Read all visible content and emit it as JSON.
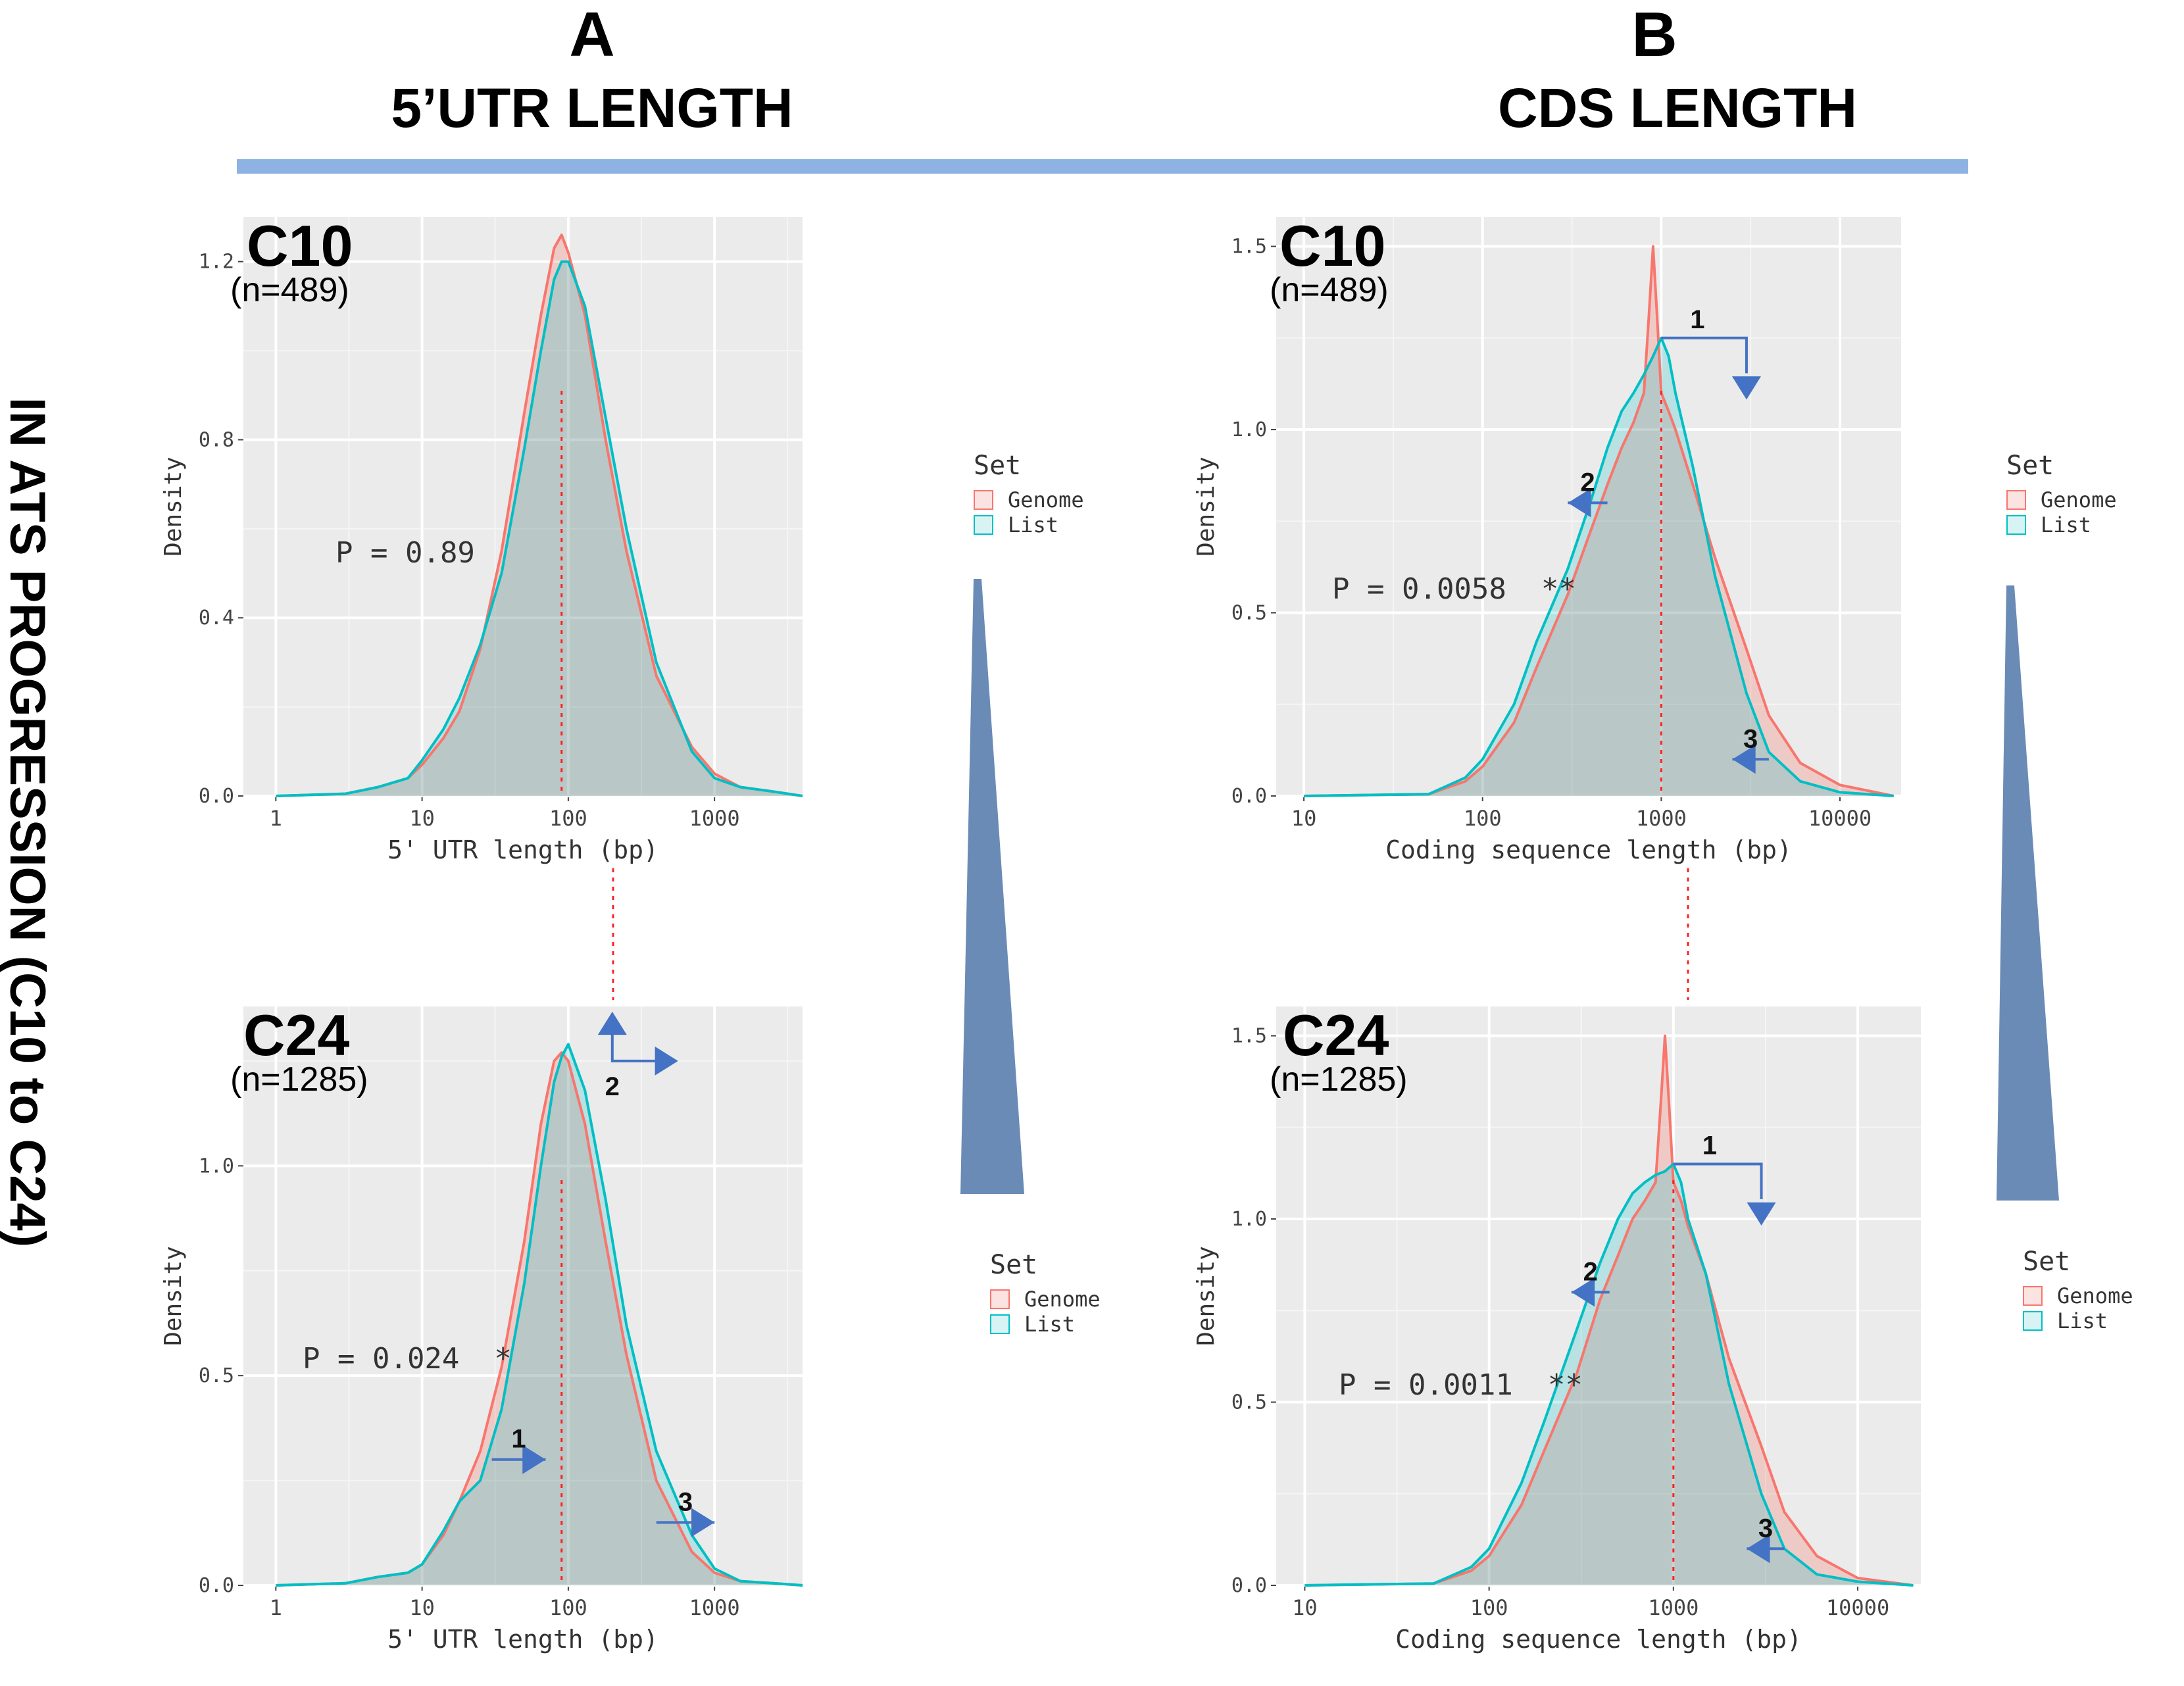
{
  "headers": {
    "left_letter": "A",
    "left_title": "5’UTR LENGTH",
    "right_letter": "B",
    "right_title": "CDS LENGTH",
    "vertical_label": "IN ATS PROGRESSION (C10 to C24)"
  },
  "colors": {
    "genome": "#f8766d",
    "list": "#00bfc4",
    "arrow": "#4472c4",
    "accent_rule": "#8db3e2",
    "wedge": "#6a8bb5",
    "plot_bg": "#ebebeb",
    "overlap": "#cbd4d4"
  },
  "chart_data": [
    {
      "id": "utr_c10",
      "type": "area",
      "title": "C10",
      "subtitle": "(n=489)",
      "xlabel": "5' UTR length (bp)",
      "ylabel": "Density",
      "xscale": "log10",
      "xlim": [
        0.6,
        4000
      ],
      "ylim": [
        0,
        1.3
      ],
      "xticks": [
        1,
        10,
        100,
        1000
      ],
      "xticklabels": [
        "1",
        "10",
        "100",
        "1000"
      ],
      "yticks": [
        0,
        0.4,
        0.8,
        1.2
      ],
      "yticklabels": [
        "0.0",
        "0.4",
        "0.8",
        "1.2"
      ],
      "annotation": "P = 0.89",
      "median_line_x": 90,
      "legend": {
        "title": "Set",
        "items": [
          "Genome",
          "List"
        ]
      },
      "series": [
        {
          "name": "Genome",
          "x": [
            1,
            3,
            5,
            8,
            10,
            14,
            18,
            25,
            35,
            50,
            65,
            80,
            90,
            100,
            130,
            180,
            250,
            400,
            700,
            1000,
            1500,
            2500,
            4000
          ],
          "y": [
            0,
            0.005,
            0.02,
            0.04,
            0.07,
            0.13,
            0.19,
            0.33,
            0.55,
            0.86,
            1.08,
            1.23,
            1.26,
            1.22,
            1.08,
            0.8,
            0.55,
            0.27,
            0.11,
            0.05,
            0.02,
            0.01,
            0
          ]
        },
        {
          "name": "List",
          "x": [
            1,
            3,
            5,
            8,
            10,
            14,
            18,
            25,
            35,
            50,
            65,
            80,
            90,
            100,
            130,
            180,
            250,
            400,
            700,
            1000,
            1500,
            2500,
            4000
          ],
          "y": [
            0,
            0.005,
            0.02,
            0.04,
            0.08,
            0.15,
            0.22,
            0.34,
            0.5,
            0.78,
            1.0,
            1.16,
            1.2,
            1.2,
            1.1,
            0.85,
            0.6,
            0.3,
            0.1,
            0.04,
            0.02,
            0.01,
            0
          ]
        }
      ],
      "arrows": []
    },
    {
      "id": "cds_c10",
      "type": "area",
      "title": "C10",
      "subtitle": "(n=489)",
      "xlabel": "Coding sequence length (bp)",
      "ylabel": "Density",
      "xscale": "log10",
      "xlim": [
        7,
        22000
      ],
      "ylim": [
        0,
        1.58
      ],
      "xticks": [
        10,
        100,
        1000,
        10000
      ],
      "xticklabels": [
        "10",
        "100",
        "1000",
        "10000"
      ],
      "yticks": [
        0,
        0.5,
        1.0,
        1.5
      ],
      "yticklabels": [
        "0.0",
        "0.5",
        "1.0",
        "1.5"
      ],
      "annotation": "P = 0.0058  **",
      "median_line_x": 1000,
      "legend": {
        "title": "Set",
        "items": [
          "Genome",
          "List"
        ]
      },
      "series": [
        {
          "name": "Genome",
          "x": [
            10,
            50,
            80,
            100,
            150,
            200,
            300,
            400,
            500,
            600,
            700,
            800,
            850,
            900,
            950,
            1000,
            1100,
            1200,
            1500,
            2000,
            3000,
            4000,
            6000,
            10000,
            20000
          ],
          "y": [
            0,
            0.005,
            0.04,
            0.08,
            0.2,
            0.35,
            0.55,
            0.72,
            0.85,
            0.95,
            1.02,
            1.1,
            1.3,
            1.5,
            1.3,
            1.1,
            1.05,
            1.0,
            0.85,
            0.65,
            0.4,
            0.22,
            0.09,
            0.03,
            0
          ]
        },
        {
          "name": "List",
          "x": [
            10,
            50,
            80,
            100,
            150,
            200,
            300,
            400,
            500,
            600,
            700,
            800,
            900,
            1000,
            1100,
            1200,
            1500,
            2000,
            3000,
            4000,
            6000,
            10000,
            20000
          ],
          "y": [
            0,
            0.005,
            0.05,
            0.1,
            0.25,
            0.42,
            0.62,
            0.8,
            0.95,
            1.05,
            1.1,
            1.15,
            1.2,
            1.25,
            1.2,
            1.1,
            0.9,
            0.6,
            0.28,
            0.12,
            0.04,
            0.01,
            0
          ]
        }
      ],
      "arrows": [
        {
          "label": "1",
          "kind": "down",
          "at": [
            1000,
            1.25
          ],
          "to": [
            3000,
            1.1
          ]
        },
        {
          "label": "2",
          "kind": "left",
          "from": [
            500,
            0.8
          ],
          "to": [
            300,
            0.8
          ]
        },
        {
          "label": "3",
          "kind": "left",
          "from": [
            4000,
            0.1
          ],
          "to": [
            2500,
            0.1
          ]
        }
      ]
    },
    {
      "id": "utr_c24",
      "type": "area",
      "title": "C24",
      "subtitle": "(n=1285)",
      "xlabel": "5' UTR length (bp)",
      "ylabel": "Density",
      "xscale": "log10",
      "xlim": [
        0.6,
        4000
      ],
      "ylim": [
        0,
        1.38
      ],
      "xticks": [
        1,
        10,
        100,
        1000
      ],
      "xticklabels": [
        "1",
        "10",
        "100",
        "1000"
      ],
      "yticks": [
        0,
        0.5,
        1.0
      ],
      "yticklabels": [
        "0.0",
        "0.5",
        "1.0"
      ],
      "annotation": "P = 0.024  *",
      "median_line_x": 90,
      "legend": {
        "title": "Set",
        "items": [
          "Genome",
          "List"
        ]
      },
      "series": [
        {
          "name": "Genome",
          "x": [
            1,
            3,
            5,
            8,
            10,
            14,
            18,
            25,
            35,
            50,
            65,
            80,
            90,
            100,
            130,
            180,
            250,
            400,
            700,
            1000,
            1500,
            2500,
            4000
          ],
          "y": [
            0,
            0.005,
            0.02,
            0.03,
            0.05,
            0.12,
            0.2,
            0.32,
            0.52,
            0.82,
            1.1,
            1.25,
            1.27,
            1.25,
            1.1,
            0.82,
            0.55,
            0.25,
            0.08,
            0.03,
            0.01,
            0.005,
            0
          ]
        },
        {
          "name": "List",
          "x": [
            1,
            3,
            5,
            8,
            10,
            14,
            18,
            25,
            35,
            50,
            65,
            80,
            90,
            100,
            130,
            180,
            250,
            400,
            700,
            1000,
            1500,
            2500,
            4000
          ],
          "y": [
            0,
            0.005,
            0.02,
            0.03,
            0.05,
            0.13,
            0.2,
            0.25,
            0.42,
            0.72,
            1.0,
            1.2,
            1.26,
            1.29,
            1.18,
            0.92,
            0.62,
            0.32,
            0.12,
            0.04,
            0.01,
            0.005,
            0
          ]
        }
      ],
      "arrows": [
        {
          "label": "1",
          "kind": "right",
          "from": [
            30,
            0.3
          ],
          "to": [
            70,
            0.3
          ]
        },
        {
          "label": "2",
          "kind": "up-right",
          "at": [
            200,
            1.25
          ]
        },
        {
          "label": "3",
          "kind": "right",
          "from": [
            400,
            0.15
          ],
          "to": [
            1000,
            0.15
          ]
        }
      ]
    },
    {
      "id": "cds_c24",
      "type": "area",
      "title": "C24",
      "subtitle": "(n=1285)",
      "xlabel": "Coding sequence length (bp)",
      "ylabel": "Density",
      "xscale": "log10",
      "xlim": [
        7,
        22000
      ],
      "ylim": [
        0,
        1.58
      ],
      "xticks": [
        10,
        100,
        1000,
        10000
      ],
      "xticklabels": [
        "10",
        "100",
        "1000",
        "10000"
      ],
      "yticks": [
        0,
        0.5,
        1.0,
        1.5
      ],
      "yticklabels": [
        "0.0",
        "0.5",
        "1.0",
        "1.5"
      ],
      "annotation": "P = 0.0011  **",
      "median_line_x": 1000,
      "legend": {
        "title": "Set",
        "items": [
          "Genome",
          "List"
        ]
      },
      "series": [
        {
          "name": "Genome",
          "x": [
            10,
            50,
            80,
            100,
            150,
            200,
            300,
            400,
            500,
            600,
            700,
            800,
            850,
            900,
            950,
            1000,
            1100,
            1200,
            1500,
            2000,
            3000,
            4000,
            6000,
            10000,
            20000
          ],
          "y": [
            0,
            0.005,
            0.04,
            0.08,
            0.22,
            0.37,
            0.58,
            0.78,
            0.9,
            1.0,
            1.05,
            1.1,
            1.3,
            1.5,
            1.3,
            1.1,
            1.05,
            0.98,
            0.85,
            0.62,
            0.38,
            0.2,
            0.08,
            0.02,
            0
          ]
        },
        {
          "name": "List",
          "x": [
            10,
            50,
            80,
            100,
            150,
            200,
            300,
            400,
            500,
            600,
            700,
            800,
            900,
            1000,
            1100,
            1200,
            1500,
            2000,
            3000,
            4000,
            6000,
            10000,
            20000
          ],
          "y": [
            0,
            0.005,
            0.05,
            0.1,
            0.28,
            0.45,
            0.7,
            0.88,
            1.0,
            1.07,
            1.1,
            1.12,
            1.13,
            1.15,
            1.1,
            1.0,
            0.85,
            0.55,
            0.25,
            0.1,
            0.03,
            0.01,
            0
          ]
        }
      ],
      "arrows": [
        {
          "label": "1",
          "kind": "down",
          "at": [
            1000,
            1.15
          ],
          "to": [
            3000,
            1.0
          ]
        },
        {
          "label": "2",
          "kind": "left",
          "from": [
            450,
            0.8
          ],
          "to": [
            280,
            0.8
          ]
        },
        {
          "label": "3",
          "kind": "left",
          "from": [
            4000,
            0.1
          ],
          "to": [
            2500,
            0.1
          ]
        }
      ]
    }
  ]
}
